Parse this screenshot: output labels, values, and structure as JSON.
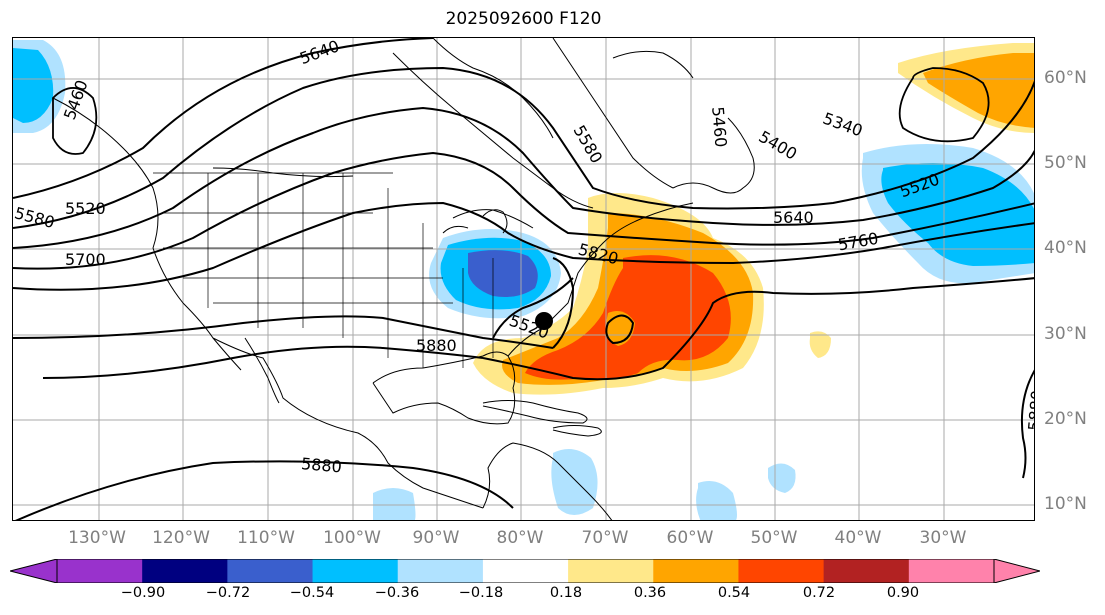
{
  "title": "2025092600 F120",
  "map": {
    "longitude_labels": [
      "130°W",
      "120°W",
      "110°W",
      "100°W",
      "90°W",
      "80°W",
      "70°W",
      "60°W",
      "50°W",
      "40°W",
      "30°W"
    ],
    "latitude_labels": [
      "60°N",
      "50°N",
      "40°N",
      "30°N",
      "20°N",
      "10°N"
    ],
    "contour_labels": [
      "5640",
      "5460",
      "5580",
      "5520",
      "5580",
      "5700",
      "5520",
      "5880",
      "5820",
      "5880",
      "5520",
      "5400",
      "5340",
      "5460",
      "5640",
      "5760",
      "5880"
    ],
    "storm_marker": "black-dot",
    "colors": {
      "very_negative": "#9932cc",
      "neg_0_90": "#000080",
      "neg_0_72": "#3a5fcd",
      "neg_0_54": "#00bfff",
      "neg_0_36": "#b0e2ff",
      "neutral": "#ffffff",
      "pos_0_18": "#ffe88a",
      "pos_0_36": "#ffa500",
      "pos_0_54": "#ff4500",
      "pos_0_72": "#b22222",
      "pos_0_90": "#ff82ab"
    }
  },
  "colorbar": {
    "ticks": [
      "−0.90",
      "−0.72",
      "−0.54",
      "−0.36",
      "−0.18",
      "0.18",
      "0.36",
      "0.54",
      "0.72",
      "0.90"
    ],
    "colors": [
      "#9932cc",
      "#000080",
      "#3a5fcd",
      "#00bfff",
      "#b0e2ff",
      "#ffffff",
      "#ffe88a",
      "#ffa500",
      "#ff4500",
      "#b22222",
      "#ff82ab",
      "#ff82ab"
    ]
  }
}
